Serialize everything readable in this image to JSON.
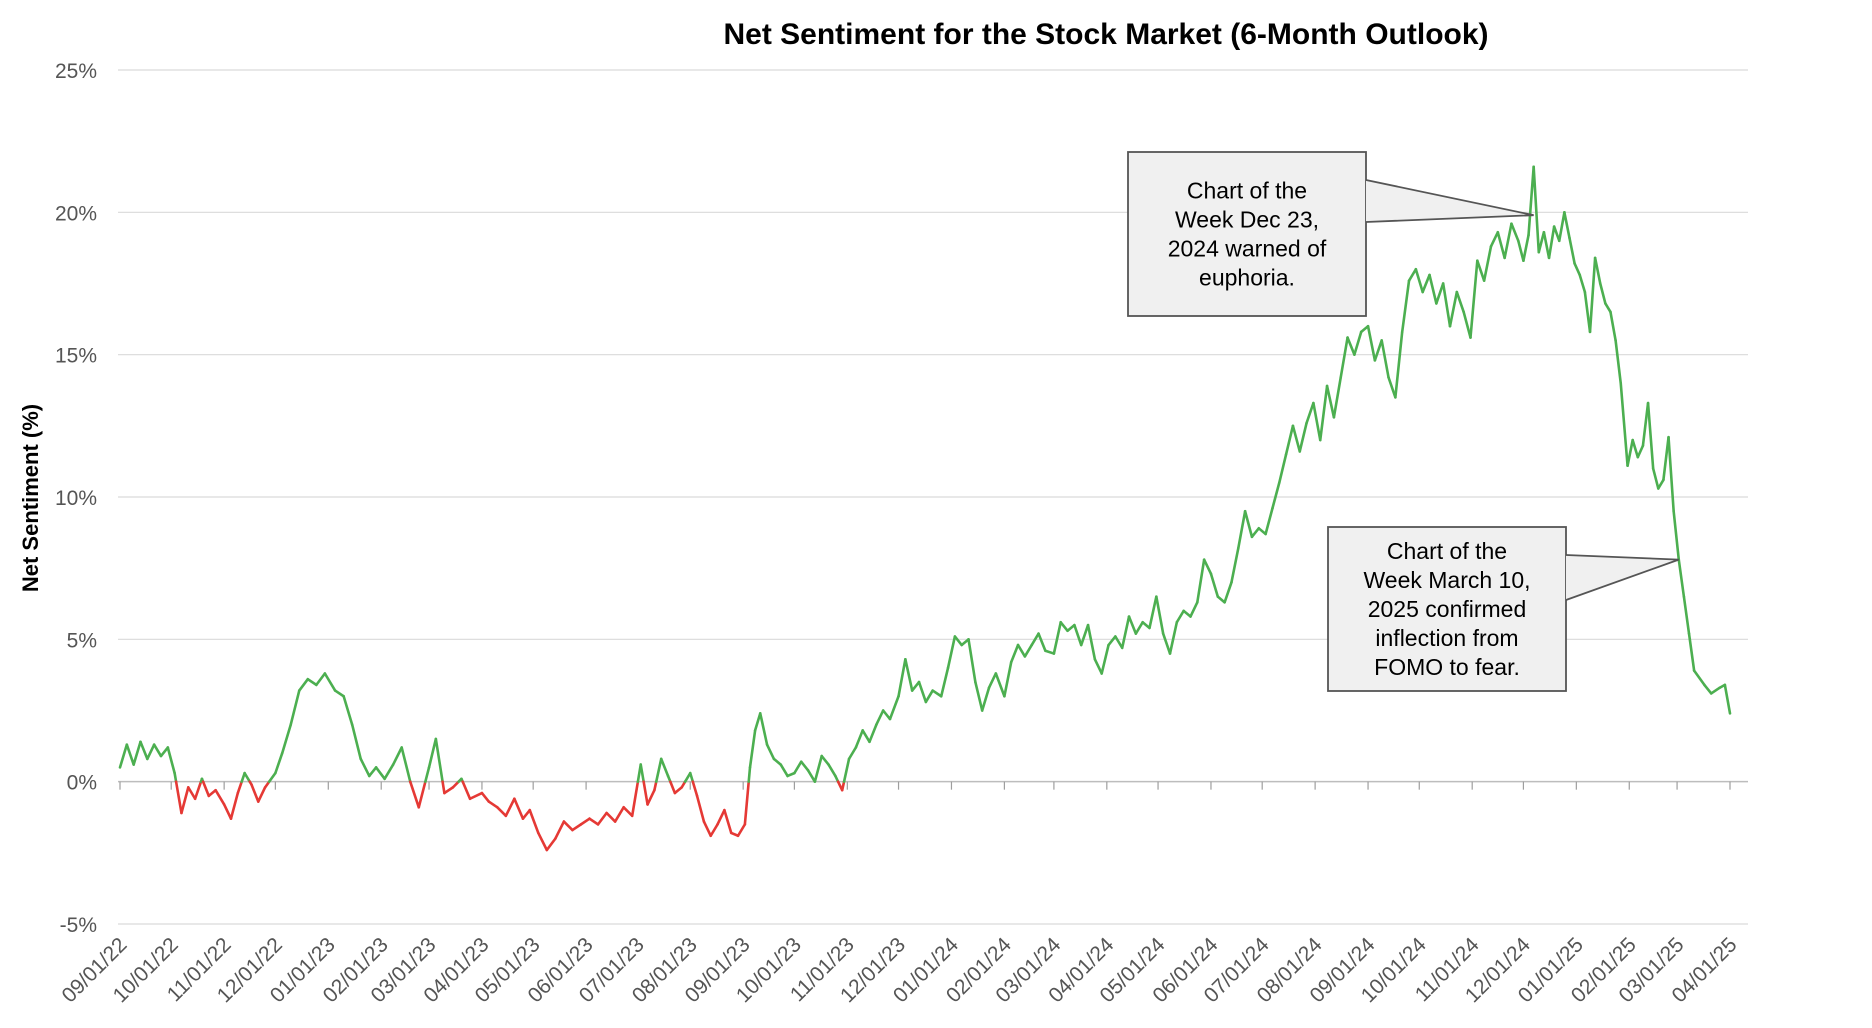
{
  "chart_data": {
    "type": "line",
    "title": "Net Sentiment for the Stock Market (6-Month Outlook)",
    "xlabel": "",
    "ylabel": "Net Sentiment (%)",
    "ylim": [
      -5,
      25
    ],
    "y_ticks": [
      "-5%",
      "0%",
      "5%",
      "10%",
      "15%",
      "20%",
      "25%"
    ],
    "x_tick_labels": [
      "09/01/22",
      "10/01/22",
      "11/01/22",
      "12/01/22",
      "01/01/23",
      "02/01/23",
      "03/01/23",
      "04/01/23",
      "05/01/23",
      "06/01/23",
      "07/01/23",
      "08/01/23",
      "09/01/23",
      "10/01/23",
      "11/01/23",
      "12/01/23",
      "01/01/24",
      "02/01/24",
      "03/01/24",
      "04/01/24",
      "05/01/24",
      "06/01/24",
      "07/01/24",
      "08/01/24",
      "09/01/24",
      "10/01/24",
      "11/01/24",
      "12/01/24",
      "01/01/25",
      "02/01/25",
      "03/01/25",
      "04/01/25"
    ],
    "grid": true,
    "legend": "none",
    "colors": {
      "positive": "#4caf50",
      "negative": "#e53935",
      "grid": "#d9d9d9",
      "callout_fill": "#f0f0f0",
      "callout_border": "#555555"
    },
    "series": [
      {
        "points": [
          [
            "2022-09-01",
            0.5
          ],
          [
            "2022-09-05",
            1.3
          ],
          [
            "2022-09-09",
            0.6
          ],
          [
            "2022-09-13",
            1.4
          ],
          [
            "2022-09-17",
            0.8
          ],
          [
            "2022-09-21",
            1.3
          ],
          [
            "2022-09-25",
            0.9
          ],
          [
            "2022-09-29",
            1.2
          ],
          [
            "2022-10-03",
            0.3
          ],
          [
            "2022-10-07",
            -1.1
          ],
          [
            "2022-10-11",
            -0.2
          ],
          [
            "2022-10-15",
            -0.6
          ],
          [
            "2022-10-19",
            0.1
          ],
          [
            "2022-10-23",
            -0.5
          ],
          [
            "2022-10-27",
            -0.3
          ],
          [
            "2022-11-01",
            -0.8
          ],
          [
            "2022-11-05",
            -1.3
          ],
          [
            "2022-11-09",
            -0.4
          ],
          [
            "2022-11-13",
            0.3
          ],
          [
            "2022-11-17",
            -0.1
          ],
          [
            "2022-11-21",
            -0.7
          ],
          [
            "2022-11-25",
            -0.2
          ],
          [
            "2022-12-01",
            0.3
          ],
          [
            "2022-12-05",
            1.0
          ],
          [
            "2022-12-10",
            2.0
          ],
          [
            "2022-12-15",
            3.2
          ],
          [
            "2022-12-20",
            3.6
          ],
          [
            "2022-12-25",
            3.4
          ],
          [
            "2022-12-30",
            3.8
          ],
          [
            "2023-01-05",
            3.2
          ],
          [
            "2023-01-10",
            3.0
          ],
          [
            "2023-01-15",
            2.0
          ],
          [
            "2023-01-20",
            0.8
          ],
          [
            "2023-01-25",
            0.2
          ],
          [
            "2023-01-29",
            0.5
          ],
          [
            "2023-02-03",
            0.1
          ],
          [
            "2023-02-08",
            0.6
          ],
          [
            "2023-02-13",
            1.2
          ],
          [
            "2023-02-18",
            0.0
          ],
          [
            "2023-02-23",
            -0.9
          ],
          [
            "2023-03-01",
            0.5
          ],
          [
            "2023-03-05",
            1.5
          ],
          [
            "2023-03-10",
            -0.4
          ],
          [
            "2023-03-15",
            -0.2
          ],
          [
            "2023-03-20",
            0.1
          ],
          [
            "2023-03-25",
            -0.6
          ],
          [
            "2023-04-01",
            -0.4
          ],
          [
            "2023-04-05",
            -0.7
          ],
          [
            "2023-04-10",
            -0.9
          ],
          [
            "2023-04-15",
            -1.2
          ],
          [
            "2023-04-20",
            -0.6
          ],
          [
            "2023-04-25",
            -1.3
          ],
          [
            "2023-04-29",
            -1.0
          ],
          [
            "2023-05-04",
            -1.8
          ],
          [
            "2023-05-09",
            -2.4
          ],
          [
            "2023-05-14",
            -2.0
          ],
          [
            "2023-05-19",
            -1.4
          ],
          [
            "2023-05-24",
            -1.7
          ],
          [
            "2023-05-29",
            -1.5
          ],
          [
            "2023-06-03",
            -1.3
          ],
          [
            "2023-06-08",
            -1.5
          ],
          [
            "2023-06-13",
            -1.1
          ],
          [
            "2023-06-18",
            -1.4
          ],
          [
            "2023-06-23",
            -0.9
          ],
          [
            "2023-06-28",
            -1.2
          ],
          [
            "2023-07-03",
            0.6
          ],
          [
            "2023-07-07",
            -0.8
          ],
          [
            "2023-07-11",
            -0.3
          ],
          [
            "2023-07-15",
            0.8
          ],
          [
            "2023-07-19",
            0.2
          ],
          [
            "2023-07-23",
            -0.4
          ],
          [
            "2023-07-27",
            -0.2
          ],
          [
            "2023-08-01",
            0.3
          ],
          [
            "2023-08-05",
            -0.5
          ],
          [
            "2023-08-09",
            -1.4
          ],
          [
            "2023-08-13",
            -1.9
          ],
          [
            "2023-08-17",
            -1.5
          ],
          [
            "2023-08-21",
            -1.0
          ],
          [
            "2023-08-25",
            -1.8
          ],
          [
            "2023-08-29",
            -1.9
          ],
          [
            "2023-09-02",
            -1.5
          ],
          [
            "2023-09-05",
            0.5
          ],
          [
            "2023-09-08",
            1.8
          ],
          [
            "2023-09-11",
            2.4
          ],
          [
            "2023-09-15",
            1.3
          ],
          [
            "2023-09-19",
            0.8
          ],
          [
            "2023-09-23",
            0.6
          ],
          [
            "2023-09-27",
            0.2
          ],
          [
            "2023-10-01",
            0.3
          ],
          [
            "2023-10-05",
            0.7
          ],
          [
            "2023-10-09",
            0.4
          ],
          [
            "2023-10-13",
            0.0
          ],
          [
            "2023-10-17",
            0.9
          ],
          [
            "2023-10-21",
            0.6
          ],
          [
            "2023-10-25",
            0.2
          ],
          [
            "2023-10-29",
            -0.3
          ],
          [
            "2023-11-02",
            0.8
          ],
          [
            "2023-11-06",
            1.2
          ],
          [
            "2023-11-10",
            1.8
          ],
          [
            "2023-11-14",
            1.4
          ],
          [
            "2023-11-18",
            2.0
          ],
          [
            "2023-11-22",
            2.5
          ],
          [
            "2023-11-26",
            2.2
          ],
          [
            "2023-12-01",
            3.0
          ],
          [
            "2023-12-05",
            4.3
          ],
          [
            "2023-12-09",
            3.2
          ],
          [
            "2023-12-13",
            3.5
          ],
          [
            "2023-12-17",
            2.8
          ],
          [
            "2023-12-21",
            3.2
          ],
          [
            "2023-12-26",
            3.0
          ],
          [
            "2023-12-30",
            4.0
          ],
          [
            "2024-01-03",
            5.1
          ],
          [
            "2024-01-07",
            4.8
          ],
          [
            "2024-01-11",
            5.0
          ],
          [
            "2024-01-15",
            3.5
          ],
          [
            "2024-01-19",
            2.5
          ],
          [
            "2024-01-23",
            3.3
          ],
          [
            "2024-01-27",
            3.8
          ],
          [
            "2024-02-01",
            3.0
          ],
          [
            "2024-02-05",
            4.2
          ],
          [
            "2024-02-09",
            4.8
          ],
          [
            "2024-02-13",
            4.4
          ],
          [
            "2024-02-17",
            4.8
          ],
          [
            "2024-02-21",
            5.2
          ],
          [
            "2024-02-25",
            4.6
          ],
          [
            "2024-03-01",
            4.5
          ],
          [
            "2024-03-05",
            5.6
          ],
          [
            "2024-03-09",
            5.3
          ],
          [
            "2024-03-13",
            5.5
          ],
          [
            "2024-03-17",
            4.8
          ],
          [
            "2024-03-21",
            5.5
          ],
          [
            "2024-03-25",
            4.3
          ],
          [
            "2024-03-29",
            3.8
          ],
          [
            "2024-04-02",
            4.8
          ],
          [
            "2024-04-06",
            5.1
          ],
          [
            "2024-04-10",
            4.7
          ],
          [
            "2024-04-14",
            5.8
          ],
          [
            "2024-04-18",
            5.2
          ],
          [
            "2024-04-22",
            5.6
          ],
          [
            "2024-04-26",
            5.4
          ],
          [
            "2024-04-30",
            6.5
          ],
          [
            "2024-05-04",
            5.2
          ],
          [
            "2024-05-08",
            4.5
          ],
          [
            "2024-05-12",
            5.6
          ],
          [
            "2024-05-16",
            6.0
          ],
          [
            "2024-05-20",
            5.8
          ],
          [
            "2024-05-24",
            6.3
          ],
          [
            "2024-05-28",
            7.8
          ],
          [
            "2024-06-01",
            7.3
          ],
          [
            "2024-06-05",
            6.5
          ],
          [
            "2024-06-09",
            6.3
          ],
          [
            "2024-06-13",
            7.0
          ],
          [
            "2024-06-17",
            8.2
          ],
          [
            "2024-06-21",
            9.5
          ],
          [
            "2024-06-25",
            8.6
          ],
          [
            "2024-06-29",
            8.9
          ],
          [
            "2024-07-03",
            8.7
          ],
          [
            "2024-07-07",
            9.6
          ],
          [
            "2024-07-11",
            10.5
          ],
          [
            "2024-07-15",
            11.5
          ],
          [
            "2024-07-19",
            12.5
          ],
          [
            "2024-07-23",
            11.6
          ],
          [
            "2024-07-27",
            12.6
          ],
          [
            "2024-07-31",
            13.3
          ],
          [
            "2024-08-04",
            12.0
          ],
          [
            "2024-08-08",
            13.9
          ],
          [
            "2024-08-12",
            12.8
          ],
          [
            "2024-08-16",
            14.2
          ],
          [
            "2024-08-20",
            15.6
          ],
          [
            "2024-08-24",
            15.0
          ],
          [
            "2024-08-28",
            15.8
          ],
          [
            "2024-09-01",
            16.0
          ],
          [
            "2024-09-05",
            14.8
          ],
          [
            "2024-09-09",
            15.5
          ],
          [
            "2024-09-13",
            14.2
          ],
          [
            "2024-09-17",
            13.5
          ],
          [
            "2024-09-21",
            15.8
          ],
          [
            "2024-09-25",
            17.6
          ],
          [
            "2024-09-29",
            18.0
          ],
          [
            "2024-10-03",
            17.2
          ],
          [
            "2024-10-07",
            17.8
          ],
          [
            "2024-10-11",
            16.8
          ],
          [
            "2024-10-15",
            17.5
          ],
          [
            "2024-10-19",
            16.0
          ],
          [
            "2024-10-23",
            17.2
          ],
          [
            "2024-10-27",
            16.5
          ],
          [
            "2024-10-31",
            15.6
          ],
          [
            "2024-11-04",
            18.3
          ],
          [
            "2024-11-08",
            17.6
          ],
          [
            "2024-11-12",
            18.8
          ],
          [
            "2024-11-16",
            19.3
          ],
          [
            "2024-11-20",
            18.4
          ],
          [
            "2024-11-24",
            19.6
          ],
          [
            "2024-11-28",
            19.0
          ],
          [
            "2024-12-01",
            18.3
          ],
          [
            "2024-12-04",
            19.2
          ],
          [
            "2024-12-07",
            21.6
          ],
          [
            "2024-12-10",
            18.6
          ],
          [
            "2024-12-13",
            19.3
          ],
          [
            "2024-12-16",
            18.4
          ],
          [
            "2024-12-19",
            19.5
          ],
          [
            "2024-12-22",
            19.0
          ],
          [
            "2024-12-25",
            20.0
          ],
          [
            "2024-12-28",
            19.1
          ],
          [
            "2024-12-31",
            18.2
          ],
          [
            "2025-01-03",
            17.8
          ],
          [
            "2025-01-06",
            17.2
          ],
          [
            "2025-01-09",
            15.8
          ],
          [
            "2025-01-12",
            18.4
          ],
          [
            "2025-01-15",
            17.5
          ],
          [
            "2025-01-18",
            16.8
          ],
          [
            "2025-01-21",
            16.5
          ],
          [
            "2025-01-24",
            15.5
          ],
          [
            "2025-01-27",
            14.0
          ],
          [
            "2025-01-31",
            11.1
          ],
          [
            "2025-02-03",
            12.0
          ],
          [
            "2025-02-06",
            11.4
          ],
          [
            "2025-02-09",
            11.8
          ],
          [
            "2025-02-12",
            13.3
          ],
          [
            "2025-02-15",
            11.0
          ],
          [
            "2025-02-18",
            10.3
          ],
          [
            "2025-02-21",
            10.6
          ],
          [
            "2025-02-24",
            12.1
          ],
          [
            "2025-02-27",
            9.5
          ],
          [
            "2025-03-02",
            7.8
          ],
          [
            "2025-03-05",
            6.5
          ],
          [
            "2025-03-08",
            5.2
          ],
          [
            "2025-03-11",
            3.9
          ],
          [
            "2025-03-17",
            3.4
          ],
          [
            "2025-03-21",
            3.1
          ],
          [
            "2025-03-26",
            3.3
          ],
          [
            "2025-03-29",
            3.4
          ],
          [
            "2025-04-01",
            2.4
          ]
        ]
      }
    ],
    "annotations": [
      {
        "lines": [
          "Chart of the",
          "Week Dec 23,",
          "2024 warned of",
          "euphoria."
        ],
        "target": [
          "2024-12-07",
          19.9
        ]
      },
      {
        "lines": [
          "Chart of the",
          "Week March 10,",
          "2025 confirmed",
          "inflection from",
          "FOMO to fear."
        ],
        "target": [
          "2025-03-02",
          7.8
        ]
      }
    ]
  }
}
